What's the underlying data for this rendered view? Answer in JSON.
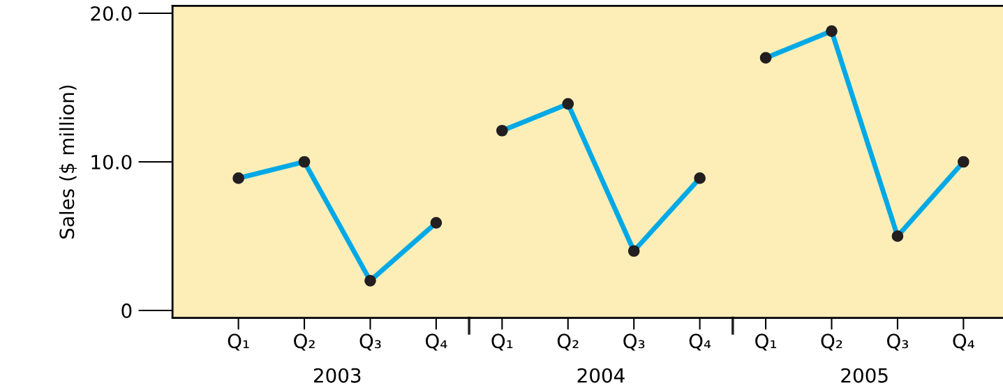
{
  "chart_data": {
    "type": "line",
    "ylabel": "Sales ($ million)",
    "categories": [
      "Q₁",
      "Q₂",
      "Q₃",
      "Q₄",
      "Q₁",
      "Q₂",
      "Q₃",
      "Q₄",
      "Q₁",
      "Q₂",
      "Q₃",
      "Q₄"
    ],
    "series": [
      {
        "color": "#00a9e6",
        "values": [
          8.9,
          10.0,
          2.0,
          5.9,
          null,
          null,
          null,
          null,
          null,
          null,
          null,
          null
        ]
      },
      {
        "color": "#00a9e6",
        "values": [
          null,
          null,
          null,
          null,
          12.1,
          13.9,
          4.0,
          8.9,
          null,
          null,
          null,
          null
        ]
      },
      {
        "color": "#00a9e6",
        "values": [
          null,
          null,
          null,
          null,
          null,
          null,
          null,
          null,
          17.0,
          18.8,
          5.0,
          10.0
        ]
      }
    ],
    "annotations": [
      "2003",
      "2004",
      "2005"
    ],
    "ylim": [
      -0.5,
      20.5
    ],
    "yticks": [
      0,
      {
        "value": 10,
        "label": "10.0"
      },
      {
        "value": 20,
        "label": "20.0"
      }
    ],
    "marker": "circle",
    "line_style": "solid",
    "grid": false,
    "legend": false
  }
}
